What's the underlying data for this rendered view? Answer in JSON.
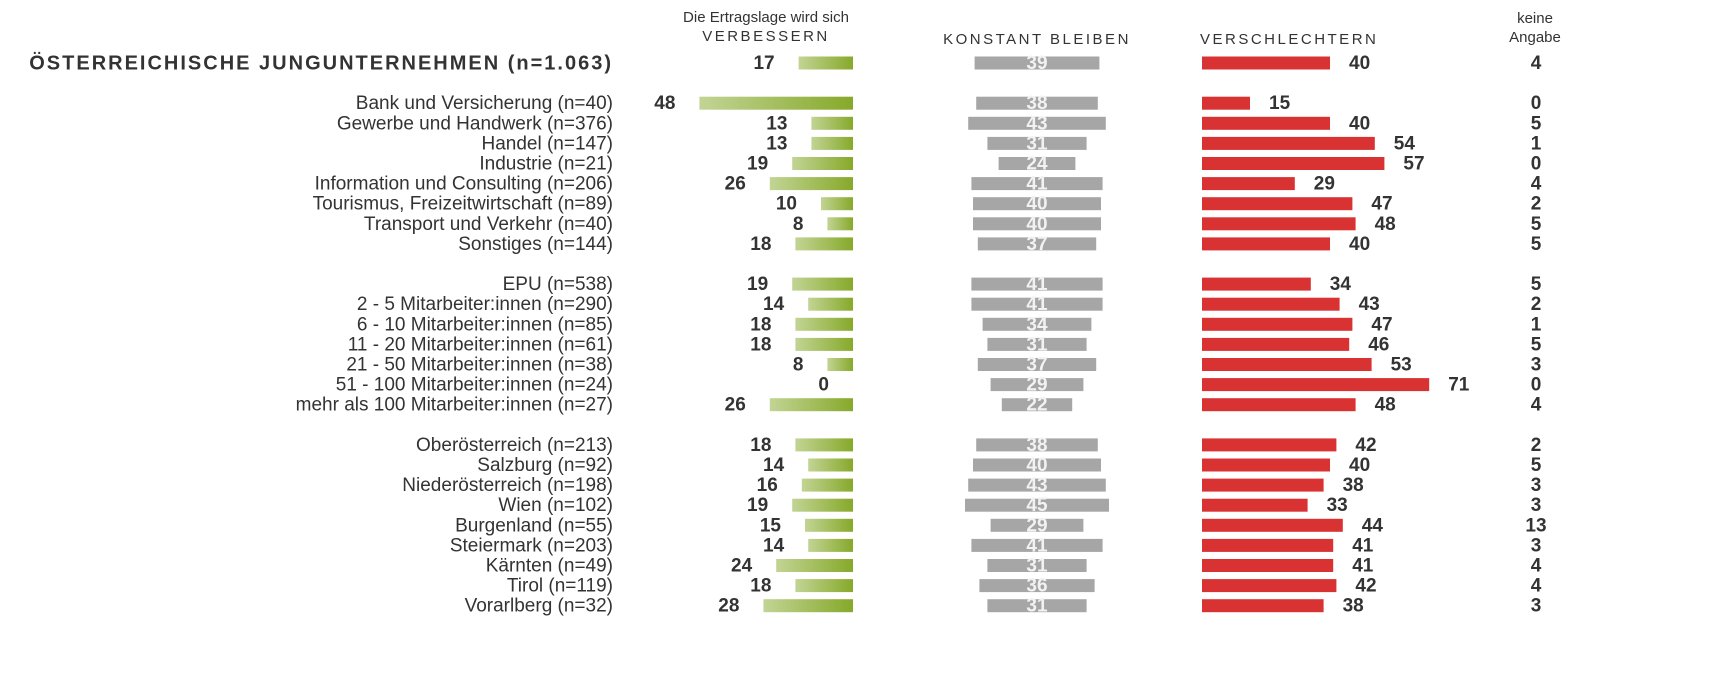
{
  "chart_data": {
    "type": "bar",
    "header_note": "Die Ertragslage wird sich",
    "categories": [
      "ÖSTERREICHISCHE JUNGUNTERNEHMEN (n=1.063)",
      null,
      "Bank und Versicherung (n=40)",
      "Gewerbe und Handwerk (n=376)",
      "Handel (n=147)",
      "Industrie (n=21)",
      "Information und Consulting (n=206)",
      "Tourismus, Freizeitwirtschaft (n=89)",
      "Transport und Verkehr (n=40)",
      "Sonstiges (n=144)",
      null,
      "EPU (n=538)",
      "2 - 5 Mitarbeiter:innen (n=290)",
      "6 - 10 Mitarbeiter:innen (n=85)",
      "11 - 20 Mitarbeiter:innen (n=61)",
      "21 - 50 Mitarbeiter:innen (n=38)",
      "51 - 100 Mitarbeiter:innen (n=24)",
      "mehr als 100 Mitarbeiter:innen (n=27)",
      null,
      "Oberösterreich (n=213)",
      "Salzburg (n=92)",
      "Niederösterreich (n=198)",
      "Wien (n=102)",
      "Burgenland (n=55)",
      "Steiermark (n=203)",
      "Kärnten (n=49)",
      "Tirol (n=119)",
      "Vorarlberg (n=32)"
    ],
    "series": [
      {
        "name": "VERBESSERN",
        "color": "#86a92a",
        "values": [
          17,
          null,
          48,
          13,
          13,
          19,
          26,
          10,
          8,
          18,
          null,
          19,
          14,
          18,
          18,
          8,
          0,
          26,
          null,
          18,
          14,
          16,
          19,
          15,
          14,
          24,
          18,
          28
        ]
      },
      {
        "name": "KONSTANT BLEIBEN",
        "color": "#a6a6a6",
        "values": [
          39,
          null,
          38,
          43,
          31,
          24,
          41,
          40,
          40,
          37,
          null,
          41,
          41,
          34,
          31,
          37,
          29,
          22,
          null,
          38,
          40,
          43,
          45,
          29,
          41,
          31,
          36,
          31
        ]
      },
      {
        "name": "VERSCHLECHTERN",
        "color": "#d93232",
        "values": [
          40,
          null,
          15,
          40,
          54,
          57,
          29,
          47,
          48,
          40,
          null,
          34,
          43,
          47,
          46,
          53,
          71,
          48,
          null,
          42,
          40,
          38,
          33,
          44,
          41,
          41,
          42,
          38
        ]
      },
      {
        "name": "keine Angabe",
        "values": [
          4,
          null,
          0,
          5,
          1,
          0,
          4,
          2,
          5,
          5,
          null,
          5,
          2,
          1,
          5,
          3,
          0,
          4,
          null,
          2,
          5,
          3,
          3,
          13,
          3,
          4,
          4,
          3
        ]
      }
    ]
  }
}
